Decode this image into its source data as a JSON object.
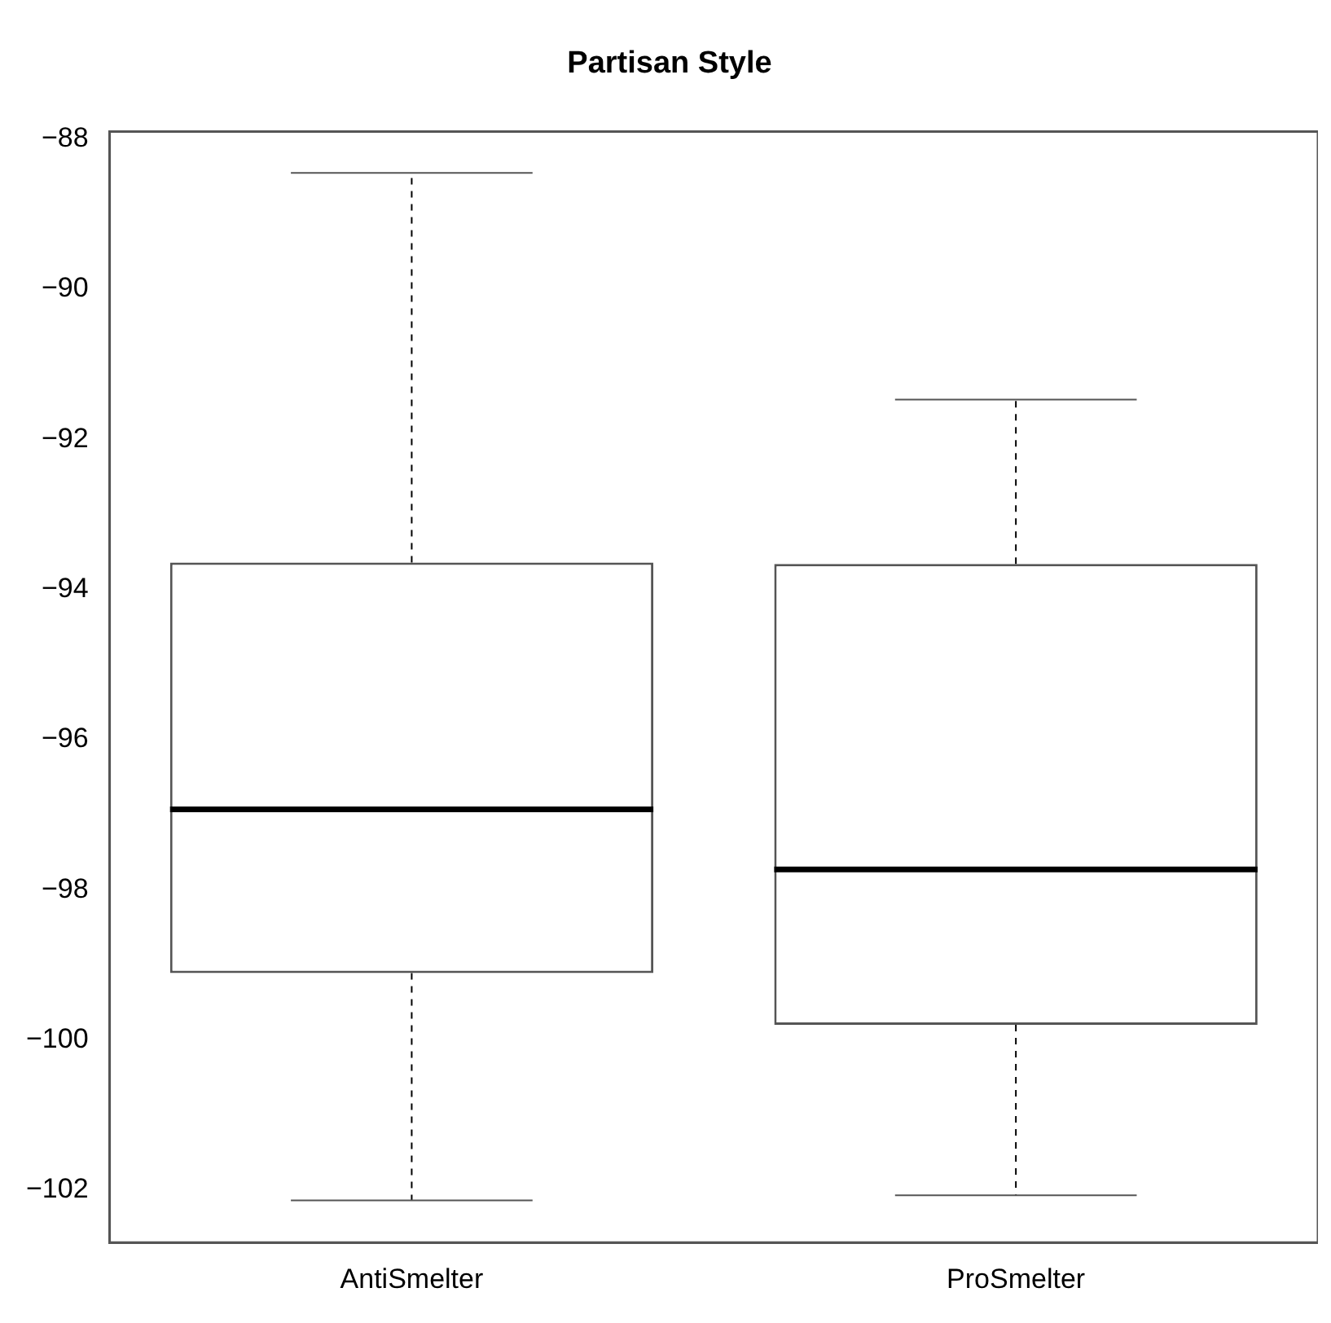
{
  "chart_data": {
    "type": "box",
    "title": "Partisan Style",
    "categories": [
      "AntiSmelter",
      "ProSmelter"
    ],
    "boxes": [
      {
        "low": -102.14,
        "q1": -99.11,
        "median": -96.93,
        "q3": -93.64,
        "high": -88.45
      },
      {
        "low": -102.07,
        "q1": -99.8,
        "median": -97.73,
        "q3": -93.66,
        "high": -91.47
      }
    ],
    "ylim": [
      -102.7,
      -87.9
    ],
    "yticks": [
      -102,
      -100,
      -98,
      -96,
      -94,
      -92,
      -90,
      -88
    ],
    "grid": false
  }
}
